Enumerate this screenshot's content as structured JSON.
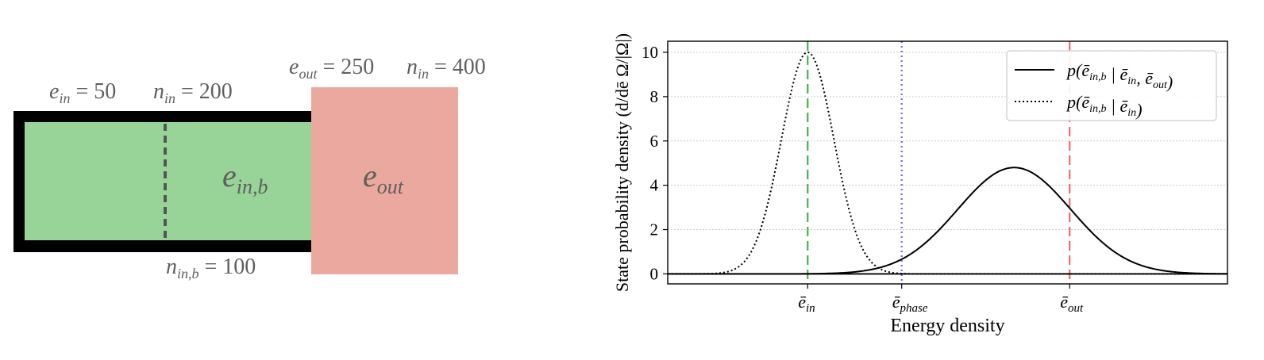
{
  "diagram": {
    "box_in_b_label": {
      "base": "e",
      "sub": "in,b"
    },
    "box_out_label": {
      "base": "e",
      "sub": "out"
    },
    "e_in_label": {
      "base": "e",
      "sub": "in",
      "rest": " = 50"
    },
    "n_in_label": {
      "base": "n",
      "sub": "in",
      "rest": " = 200"
    },
    "e_out_label": {
      "base": "e",
      "sub": "out",
      "rest": " = 250"
    },
    "n_in_out_label": {
      "base": "n",
      "sub": "in",
      "rest": " = 400"
    },
    "n_in_b_label": {
      "base": "n",
      "sub": "in,b",
      "rest": " = 100"
    },
    "colors": {
      "green": "#98d498",
      "red": "#eba89e",
      "frame": "#000000",
      "divider": "#555555"
    }
  },
  "chart_data": {
    "type": "line",
    "ylabel": "State probability density (d/dē Ω/|Ω|)",
    "xlabel": "Energy density",
    "ylim": [
      -0.45,
      10.5
    ],
    "xlim": [
      0,
      1
    ],
    "yticks": [
      "0",
      "2",
      "4",
      "6",
      "8",
      "10"
    ],
    "xticks": [
      {
        "label_base": "ē",
        "label_sub": "in",
        "x": 0.25,
        "color": "#4caf50",
        "style": "dashed"
      },
      {
        "label_base": "ē",
        "label_sub": "phase",
        "x": 0.418,
        "color": "#6b6bde",
        "style": "dotted"
      },
      {
        "label_base": "ē",
        "label_sub": "out",
        "x": 0.718,
        "color": "#ef6b6b",
        "style": "dashed"
      }
    ],
    "grid": "horizontal",
    "legend_position": "top-right",
    "series": [
      {
        "name": "p(ē_in,b | ē_in, ē_out)",
        "style": "solid",
        "mean": 0.619,
        "std": 0.101,
        "peak": 4.8
      },
      {
        "name": "p(ē_in,b | ē_in)",
        "style": "dotted",
        "mean": 0.25,
        "std": 0.047,
        "peak": 10.0
      }
    ],
    "legend": {
      "entries": [
        {
          "text_main": "p(ē",
          "sub": "in,b",
          "text_rest": " | ē",
          "sub2": "in",
          "text_rest2": ", ē",
          "sub3": "out",
          "text_end": ")"
        },
        {
          "text_main": "p(ē",
          "sub": "in,b",
          "text_rest": " | ē",
          "sub2": "in",
          "text_end": ")"
        }
      ]
    }
  }
}
